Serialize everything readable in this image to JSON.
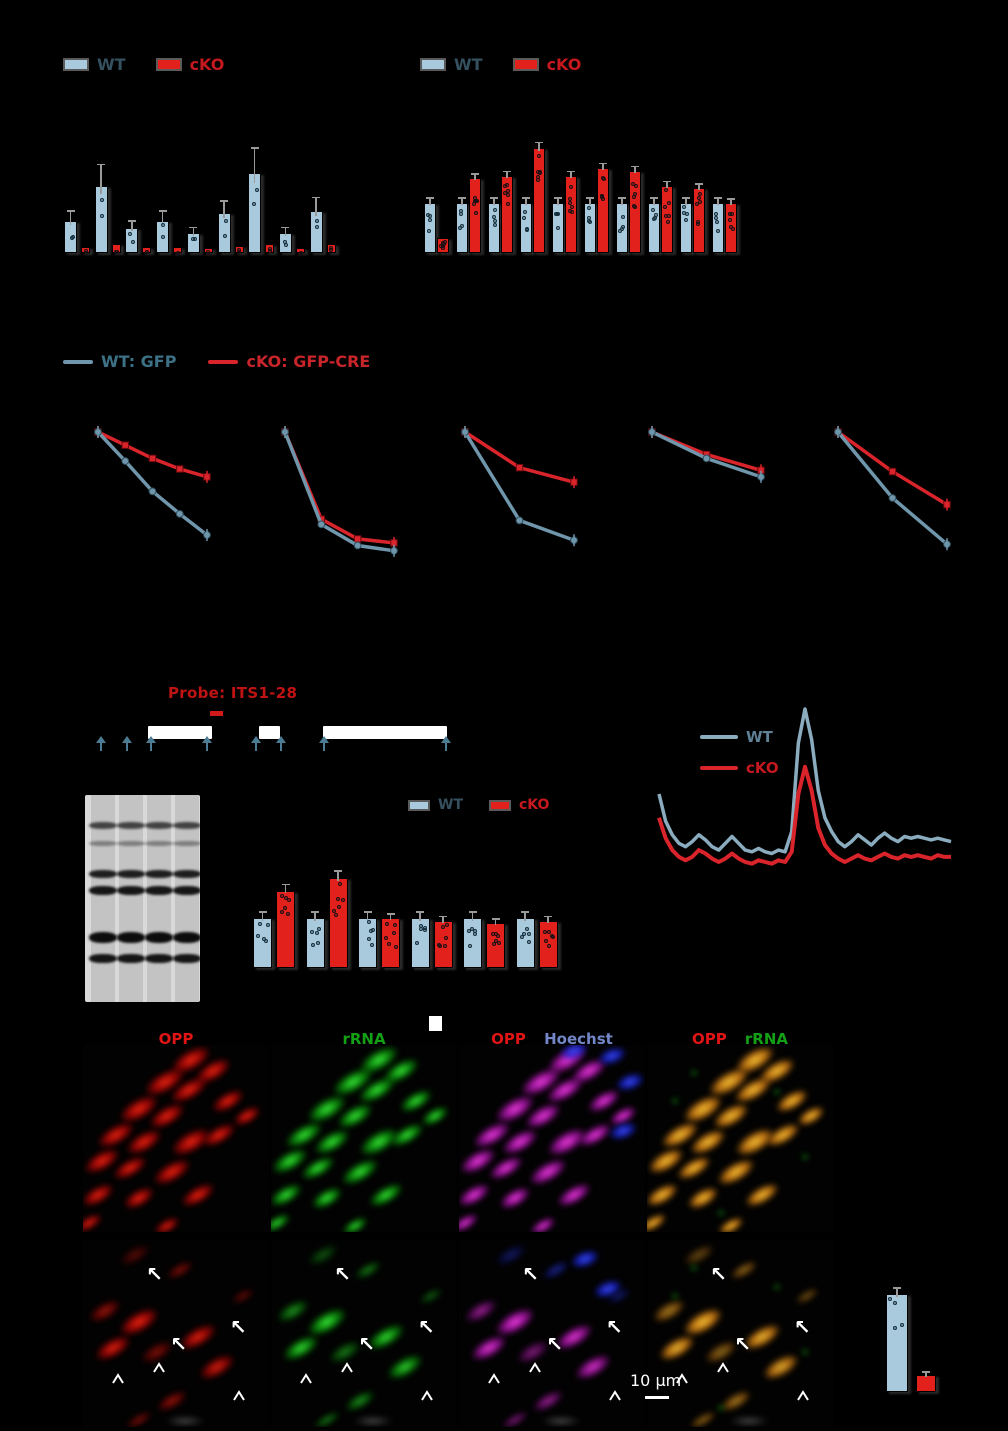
{
  "colors": {
    "wt_bar": "#a9c9dc",
    "cko_bar": "#e2211c",
    "wt_line": "#6f96ab",
    "cko_line": "#d8242a",
    "wt_text": "#35515f",
    "cko_text": "#c5191f",
    "probe_text": "#c01313",
    "schematic_arrow": "#4b7c94"
  },
  "chart_data": [
    {
      "type": "bar",
      "title": "",
      "legend": [
        "WT",
        "cKO"
      ],
      "series": [
        {
          "name": "WT",
          "values": [
            0.65,
            1.35,
            0.5,
            0.65,
            0.4,
            0.8,
            1.6,
            0.4,
            0.85
          ]
        },
        {
          "name": "cKO",
          "values": [
            0.12,
            0.18,
            0.12,
            0.12,
            0.1,
            0.14,
            0.18,
            0.1,
            0.18
          ]
        }
      ],
      "ylim": [
        0,
        2
      ],
      "grid": false
    },
    {
      "type": "bar",
      "title": "",
      "legend": [
        "WT",
        "cKO"
      ],
      "series": [
        {
          "name": "WT",
          "values": [
            1.0,
            1.0,
            1.0,
            1.0,
            1.0,
            1.0,
            1.0,
            1.0,
            1.0,
            1.0
          ]
        },
        {
          "name": "cKO",
          "values": [
            0.3,
            1.5,
            1.55,
            2.1,
            1.55,
            1.7,
            1.65,
            1.35,
            1.3,
            1.0
          ]
        }
      ],
      "ylim": [
        0,
        2.5
      ],
      "grid": false
    },
    {
      "type": "line",
      "series": [
        {
          "name": "WT: GFP",
          "values": [
            1.0,
            0.78,
            0.55,
            0.38,
            0.22
          ]
        },
        {
          "name": "cKO: GFP-CRE",
          "values": [
            1.0,
            0.9,
            0.8,
            0.72,
            0.66
          ]
        }
      ],
      "ylim": [
        0,
        1
      ]
    },
    {
      "type": "line",
      "series": [
        {
          "name": "WT: GFP",
          "values": [
            1.0,
            0.3,
            0.14,
            0.1
          ]
        },
        {
          "name": "cKO: GFP-CRE",
          "values": [
            1.0,
            0.34,
            0.19,
            0.16
          ]
        }
      ],
      "ylim": [
        0,
        1
      ]
    },
    {
      "type": "line",
      "series": [
        {
          "name": "WT: GFP",
          "values": [
            1.0,
            0.33,
            0.18
          ]
        },
        {
          "name": "cKO: GFP-CRE",
          "values": [
            1.0,
            0.73,
            0.62
          ]
        }
      ],
      "ylim": [
        0,
        1
      ]
    },
    {
      "type": "line",
      "series": [
        {
          "name": "WT: GFP",
          "values": [
            1.0,
            0.8,
            0.66
          ]
        },
        {
          "name": "cKO: GFP-CRE",
          "values": [
            1.0,
            0.83,
            0.71
          ]
        }
      ],
      "ylim": [
        0,
        1
      ]
    },
    {
      "type": "line",
      "series": [
        {
          "name": "WT: GFP",
          "values": [
            1.0,
            0.5,
            0.15
          ]
        },
        {
          "name": "cKO: GFP-CRE",
          "values": [
            1.0,
            0.7,
            0.45
          ]
        }
      ],
      "ylim": [
        0,
        1
      ]
    },
    {
      "type": "bar",
      "title": "",
      "legend": [
        "WT",
        "cKO"
      ],
      "series": [
        {
          "name": "WT",
          "values": [
            1.0,
            1.0,
            1.0,
            1.0,
            1.0,
            1.0
          ]
        },
        {
          "name": "cKO",
          "values": [
            1.55,
            1.8,
            1.0,
            0.95,
            0.9,
            0.95
          ]
        }
      ],
      "ylim": [
        0,
        2
      ],
      "grid": false
    },
    {
      "type": "line",
      "title": "",
      "legend_position": "upper-left",
      "series": [
        {
          "name": "WT",
          "values": [
            0.5,
            0.34,
            0.26,
            0.21,
            0.19,
            0.22,
            0.26,
            0.23,
            0.19,
            0.17,
            0.21,
            0.25,
            0.21,
            0.17,
            0.16,
            0.18,
            0.16,
            0.15,
            0.17,
            0.16,
            0.28,
            0.8,
            1.0,
            0.82,
            0.52,
            0.36,
            0.28,
            0.22,
            0.19,
            0.22,
            0.26,
            0.23,
            0.2,
            0.24,
            0.27,
            0.24,
            0.22,
            0.25,
            0.24,
            0.25,
            0.24,
            0.23,
            0.24,
            0.23,
            0.22
          ]
        },
        {
          "name": "cKO",
          "values": [
            0.36,
            0.24,
            0.17,
            0.13,
            0.11,
            0.13,
            0.17,
            0.15,
            0.12,
            0.1,
            0.12,
            0.15,
            0.12,
            0.1,
            0.09,
            0.11,
            0.1,
            0.09,
            0.11,
            0.1,
            0.16,
            0.5,
            0.66,
            0.52,
            0.3,
            0.2,
            0.15,
            0.12,
            0.1,
            0.12,
            0.14,
            0.12,
            0.11,
            0.13,
            0.15,
            0.13,
            0.12,
            0.14,
            0.13,
            0.14,
            0.13,
            0.12,
            0.14,
            0.13,
            0.13
          ]
        }
      ],
      "ylim": [
        0,
        1
      ]
    },
    {
      "type": "bar",
      "title": "",
      "legend": [
        "WT",
        "cKO"
      ],
      "series": [
        {
          "name": "WT",
          "values": [
            1.0
          ]
        },
        {
          "name": "cKO",
          "values": [
            0.17
          ]
        }
      ],
      "ylim": [
        0,
        1.2
      ],
      "grid": false
    }
  ],
  "line_legend": {
    "wt": "WT: GFP",
    "cko": "cKO: GFP-CRE"
  },
  "northern": {
    "probe_label": "Probe: ITS1-28",
    "gel_lanes": 4,
    "gel_bands_per_lane": 6
  },
  "profile_legend": {
    "wt": "WT",
    "cko": "cKO"
  },
  "microscopy": {
    "labels": {
      "opp": "OPP",
      "rrna": "rRNA",
      "hoechst": "Hoechst"
    },
    "scale_text": "10 µm"
  }
}
